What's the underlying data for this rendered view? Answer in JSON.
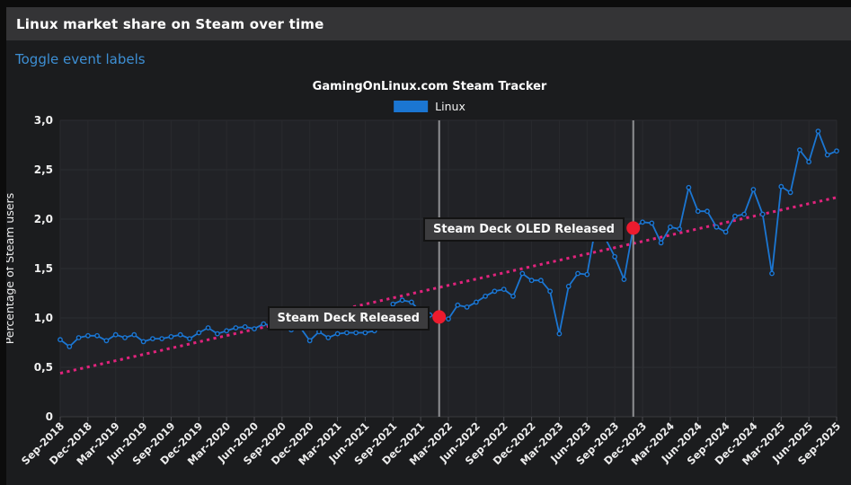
{
  "header": {
    "title": "Linux market share on Steam over time"
  },
  "controls": {
    "toggle_link": "Toggle event labels"
  },
  "colors": {
    "link_blue": "#3d8fd4",
    "series_blue": "#1b76d2",
    "trend_pink": "#e0237c",
    "event_dot_red": "#ec1b2e",
    "event_line_gray": "#8f9093",
    "header_bg": "#343436",
    "page_bg": "#1b1c1e"
  },
  "chart_data": {
    "type": "line",
    "title": "GamingOnLinux.com Steam Tracker",
    "xlabel": "",
    "ylabel": "Percentage of Steam users",
    "ylim": [
      0,
      3.0
    ],
    "y_tick_labels": [
      "0",
      "0,5",
      "1,0",
      "1,5",
      "2,0",
      "2,5",
      "3,0"
    ],
    "x_tick_every_months": 3,
    "grid": true,
    "legend_position": "top-center",
    "months": [
      "Sep-2018",
      "Oct-2018",
      "Nov-2018",
      "Dec-2018",
      "Jan-2019",
      "Feb-2019",
      "Mar-2019",
      "Apr-2019",
      "May-2019",
      "Jun-2019",
      "Jul-2019",
      "Aug-2019",
      "Sep-2019",
      "Oct-2019",
      "Nov-2019",
      "Dec-2019",
      "Jan-2020",
      "Feb-2020",
      "Mar-2020",
      "Apr-2020",
      "May-2020",
      "Jun-2020",
      "Jul-2020",
      "Aug-2020",
      "Sep-2020",
      "Oct-2020",
      "Nov-2020",
      "Dec-2020",
      "Jan-2021",
      "Feb-2021",
      "Mar-2021",
      "Apr-2021",
      "May-2021",
      "Jun-2021",
      "Jul-2021",
      "Aug-2021",
      "Sep-2021",
      "Oct-2021",
      "Nov-2021",
      "Dec-2021",
      "Jan-2022",
      "Feb-2022",
      "Mar-2022",
      "Apr-2022",
      "May-2022",
      "Jun-2022",
      "Jul-2022",
      "Aug-2022",
      "Sep-2022",
      "Oct-2022",
      "Nov-2022",
      "Dec-2022",
      "Jan-2023",
      "Feb-2023",
      "Mar-2023",
      "Apr-2023",
      "May-2023",
      "Jun-2023",
      "Jul-2023",
      "Aug-2023",
      "Sep-2023",
      "Oct-2023",
      "Nov-2023",
      "Dec-2023",
      "Jan-2024",
      "Feb-2024",
      "Mar-2024",
      "Apr-2024",
      "May-2024",
      "Jun-2024",
      "Jul-2024",
      "Aug-2024",
      "Sep-2024",
      "Oct-2024",
      "Nov-2024",
      "Dec-2024",
      "Jan-2025",
      "Feb-2025",
      "Mar-2025",
      "Apr-2025",
      "May-2025",
      "Jun-2025",
      "Jul-2025",
      "Aug-2025",
      "Sep-2025"
    ],
    "series": [
      {
        "name": "Linux",
        "color": "#1b76d2",
        "values": [
          0.78,
          0.71,
          0.8,
          0.82,
          0.82,
          0.77,
          0.83,
          0.8,
          0.83,
          0.76,
          0.79,
          0.79,
          0.81,
          0.83,
          0.79,
          0.85,
          0.9,
          0.84,
          0.87,
          0.9,
          0.91,
          0.89,
          0.94,
          0.92,
          0.91,
          0.88,
          0.9,
          0.77,
          0.86,
          0.8,
          0.84,
          0.85,
          0.85,
          0.85,
          0.87,
          0.95,
          1.14,
          1.18,
          1.16,
          1.06,
          1.03,
          1.01,
          0.99,
          1.13,
          1.11,
          1.16,
          1.22,
          1.27,
          1.29,
          1.22,
          1.45,
          1.38,
          1.38,
          1.27,
          0.84,
          1.32,
          1.45,
          1.44,
          1.96,
          1.8,
          1.62,
          1.39,
          1.91,
          1.97,
          1.96,
          1.76,
          1.92,
          1.9,
          2.32,
          2.08,
          2.08,
          1.92,
          1.87,
          2.03,
          2.05,
          2.3,
          2.05,
          1.45,
          2.33,
          2.27,
          2.7,
          2.58,
          2.89,
          2.65,
          2.69
        ]
      }
    ],
    "trend_line": {
      "style": "dotted",
      "color": "#e0237c",
      "start_value": 0.44,
      "end_value": 2.22
    },
    "events": [
      {
        "label": "Steam Deck Released",
        "month": "Feb-2022",
        "month_index": 41,
        "value": 1.01
      },
      {
        "label": "Steam Deck OLED Released",
        "month": "Nov-2023",
        "month_index": 62,
        "value": 1.91
      }
    ]
  }
}
